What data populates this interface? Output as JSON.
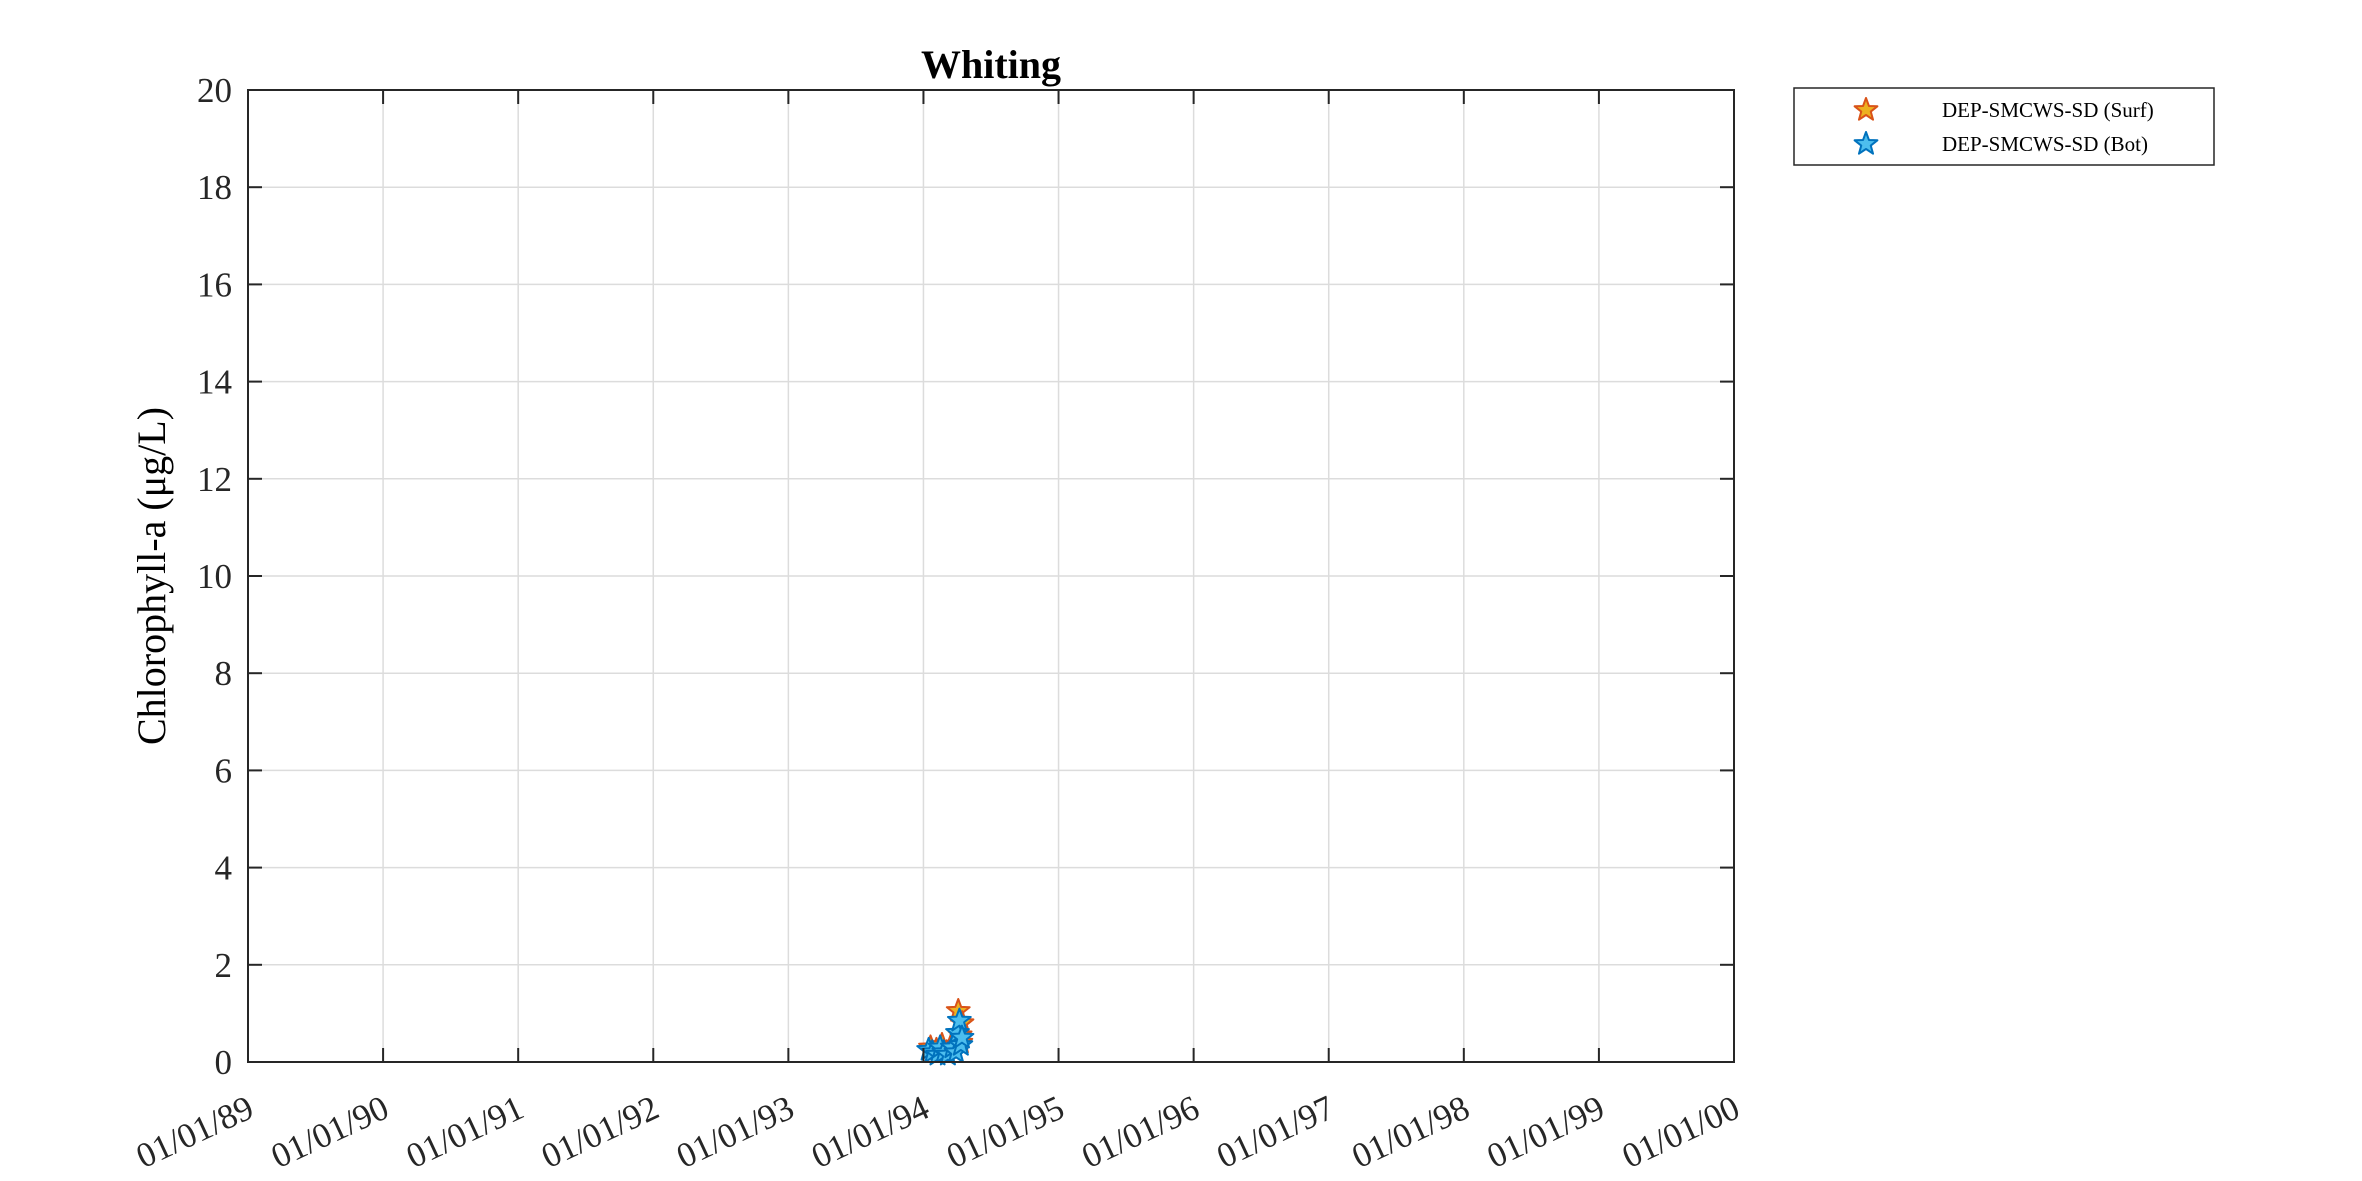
{
  "chart_data": {
    "type": "scatter",
    "title": "Whiting",
    "xlabel": "",
    "ylabel": "Chlorophyll-a (μg/L)",
    "x_tick_labels": [
      "01/01/89",
      "01/01/90",
      "01/01/91",
      "01/01/92",
      "01/01/93",
      "01/01/94",
      "01/01/95",
      "01/01/96",
      "01/01/97",
      "01/01/98",
      "01/01/99",
      "01/01/00"
    ],
    "xlim": [
      "1989-01-01",
      "2000-01-01"
    ],
    "ylim": [
      0,
      20
    ],
    "y_ticks": [
      0,
      2,
      4,
      6,
      8,
      10,
      12,
      14,
      16,
      18,
      20
    ],
    "grid": true,
    "legend_position": "outside-top-right",
    "series": [
      {
        "name": "DEP-SMCWS-SD (Surf)",
        "marker": "star",
        "face_color": "#EDB120",
        "edge_color": "#D95319",
        "points": [
          {
            "x": "1994-01-20",
            "y": 0.3
          },
          {
            "x": "1994-02-05",
            "y": 0.25
          },
          {
            "x": "1994-02-20",
            "y": 0.35
          },
          {
            "x": "1994-03-05",
            "y": 0.2
          },
          {
            "x": "1994-03-15",
            "y": 0.3
          },
          {
            "x": "1994-03-25",
            "y": 0.25
          },
          {
            "x": "1994-04-05",
            "y": 1.05
          },
          {
            "x": "1994-04-10",
            "y": 0.55
          },
          {
            "x": "1994-04-15",
            "y": 0.8
          },
          {
            "x": "1994-04-12",
            "y": 0.4
          }
        ]
      },
      {
        "name": "DEP-SMCWS-SD (Bot)",
        "marker": "star",
        "face_color": "#4DBEEE",
        "edge_color": "#0072BD",
        "points": [
          {
            "x": "1994-01-15",
            "y": 0.25
          },
          {
            "x": "1994-01-25",
            "y": 0.2
          },
          {
            "x": "1994-02-08",
            "y": 0.15
          },
          {
            "x": "1994-02-15",
            "y": 0.3
          },
          {
            "x": "1994-02-25",
            "y": 0.2
          },
          {
            "x": "1994-03-08",
            "y": 0.15
          },
          {
            "x": "1994-03-20",
            "y": 0.3
          },
          {
            "x": "1994-03-30",
            "y": 0.2
          },
          {
            "x": "1994-04-03",
            "y": 0.6
          },
          {
            "x": "1994-04-08",
            "y": 0.85
          },
          {
            "x": "1994-04-12",
            "y": 0.35
          },
          {
            "x": "1994-04-15",
            "y": 0.5
          }
        ]
      }
    ]
  }
}
